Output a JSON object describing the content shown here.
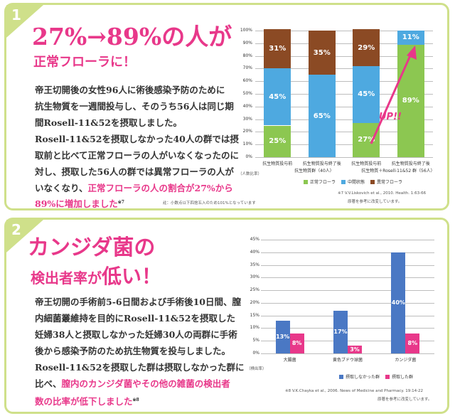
{
  "section1": {
    "number": "1",
    "headline_line1": "27%→89%の人が",
    "headline_line2": "正常フローラに！",
    "body_lines": [
      "帝王切開後の女性96人に術後感染予防のために",
      "抗生物質を一週間投与し、そのうち56人は同じ期",
      "間Rosell-11&52を摂取しました。",
      "Rosell-11&52を摂取しなかった40人の群では摂",
      "取前と比べて正常フローラの人がいなくなったのに",
      "対し、摂取した56人の群では異常フローラの人が",
      "いなくなり、"
    ],
    "highlight_line1": "正常フローラの人の割合が27%から",
    "highlight_line2": "89%に増加しました",
    "ref_mark": "※7",
    "note": "註：小数点以下四捨五入のため101%となっています",
    "citation_line1": "※7 V.V.Liskovich et al., 2010. Health. 1:63-66",
    "citation_line2": "原著を参考に改変しています。",
    "up_label": "UP!!",
    "y_caption": "（人数比率）",
    "group_label_a": "抗生物質群（40人）",
    "group_label_b": "抗生物質＋Rosell-11&52 群（56人）",
    "chart_data": {
      "type": "bar",
      "stacked": true,
      "categories": [
        "抗生物質投与前",
        "抗生物質投与終了後",
        "抗生物質投与前",
        "抗生物質投与終了後"
      ],
      "y_ticks": [
        "0%",
        "10%",
        "20%",
        "30%",
        "40%",
        "50%",
        "60%",
        "70%",
        "80%",
        "90%",
        "100%"
      ],
      "ylim": [
        0,
        100
      ],
      "series": [
        {
          "name": "正常フローラ",
          "color": "#8cc751",
          "values": [
            25,
            0,
            27,
            89
          ]
        },
        {
          "name": "中間状態",
          "color": "#4ea9e0",
          "values": [
            45,
            65,
            45,
            11
          ]
        },
        {
          "name": "異常フローラ",
          "color": "#8b4a24",
          "values": [
            31,
            35,
            29,
            0
          ]
        }
      ],
      "labels": [
        [
          "25%",
          "45%",
          "31%"
        ],
        [
          "",
          "65%",
          "35%"
        ],
        [
          "27%",
          "45%",
          "29%"
        ],
        [
          "89%",
          "11%",
          ""
        ]
      ]
    }
  },
  "section2": {
    "number": "2",
    "headline_line1": "カンジダ菌の",
    "headline_line2a": "検出者率が",
    "headline_line2b": "低い！",
    "body_lines": [
      "帝王切開の手術前5-6日間および手術後10日間、膣",
      "内細菌叢維持を目的にRosell-11&52を摂取した",
      "妊婦38人と摂取しなかった妊婦30人の両群に手術",
      "後から感染予防のため抗生物質を投与しました。",
      "Rosell-11&52を摂取した群は摂取しなかった群に",
      "比べ、"
    ],
    "highlight_a": "膣内のカンジダ菌やその他の雑菌の検出者",
    "highlight_b": "数の比率が低下しました",
    "ref_mark": "※8",
    "citation_line1": "※8 V.K.Chayka et al., 2006. News of Medicine and Pharmacy. 19:14-22",
    "citation_line2": "原著を参考に改変しています。",
    "y_caption": "（検出率）",
    "chart_data": {
      "type": "bar",
      "categories": [
        "大腸菌",
        "黄色ブドウ球菌",
        "カンジダ菌"
      ],
      "y_ticks": [
        "0%",
        "5%",
        "10%",
        "15%",
        "20%",
        "25%",
        "30%",
        "35%",
        "40%",
        "45%"
      ],
      "ylim": [
        0,
        45
      ],
      "series": [
        {
          "name": "摂取しなかった群",
          "color": "#4a78c4",
          "values": [
            13,
            17,
            40
          ]
        },
        {
          "name": "摂取した群",
          "color": "#e8388a",
          "values": [
            8,
            3,
            8
          ]
        }
      ],
      "labels": [
        [
          "13%",
          "17%",
          "40%"
        ],
        [
          "8%",
          "3%",
          "8%"
        ]
      ]
    }
  }
}
